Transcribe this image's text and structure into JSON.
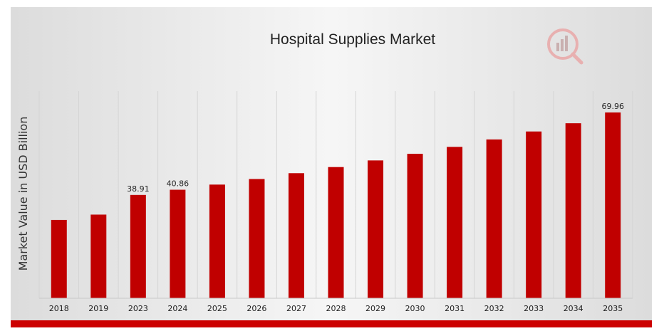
{
  "chart_data": {
    "type": "bar",
    "title": "Hospital Supplies Market",
    "xlabel": "",
    "ylabel": "Market Value in USD Billion",
    "categories": [
      "2018",
      "2019",
      "2023",
      "2024",
      "2025",
      "2026",
      "2027",
      "2028",
      "2029",
      "2030",
      "2031",
      "2032",
      "2033",
      "2034",
      "2035"
    ],
    "values": [
      29.5,
      31.5,
      38.91,
      40.86,
      42.8,
      44.9,
      47.1,
      49.4,
      51.9,
      54.4,
      57.0,
      59.8,
      62.8,
      65.9,
      69.96
    ],
    "data_labels": [
      {
        "category": "2023",
        "text": "38.91"
      },
      {
        "category": "2024",
        "text": "40.86"
      },
      {
        "category": "2035",
        "text": "69.96"
      }
    ],
    "ylim": [
      0,
      78
    ],
    "grid": true,
    "bar_color": "#c00000",
    "accent_color": "#cc0000"
  }
}
